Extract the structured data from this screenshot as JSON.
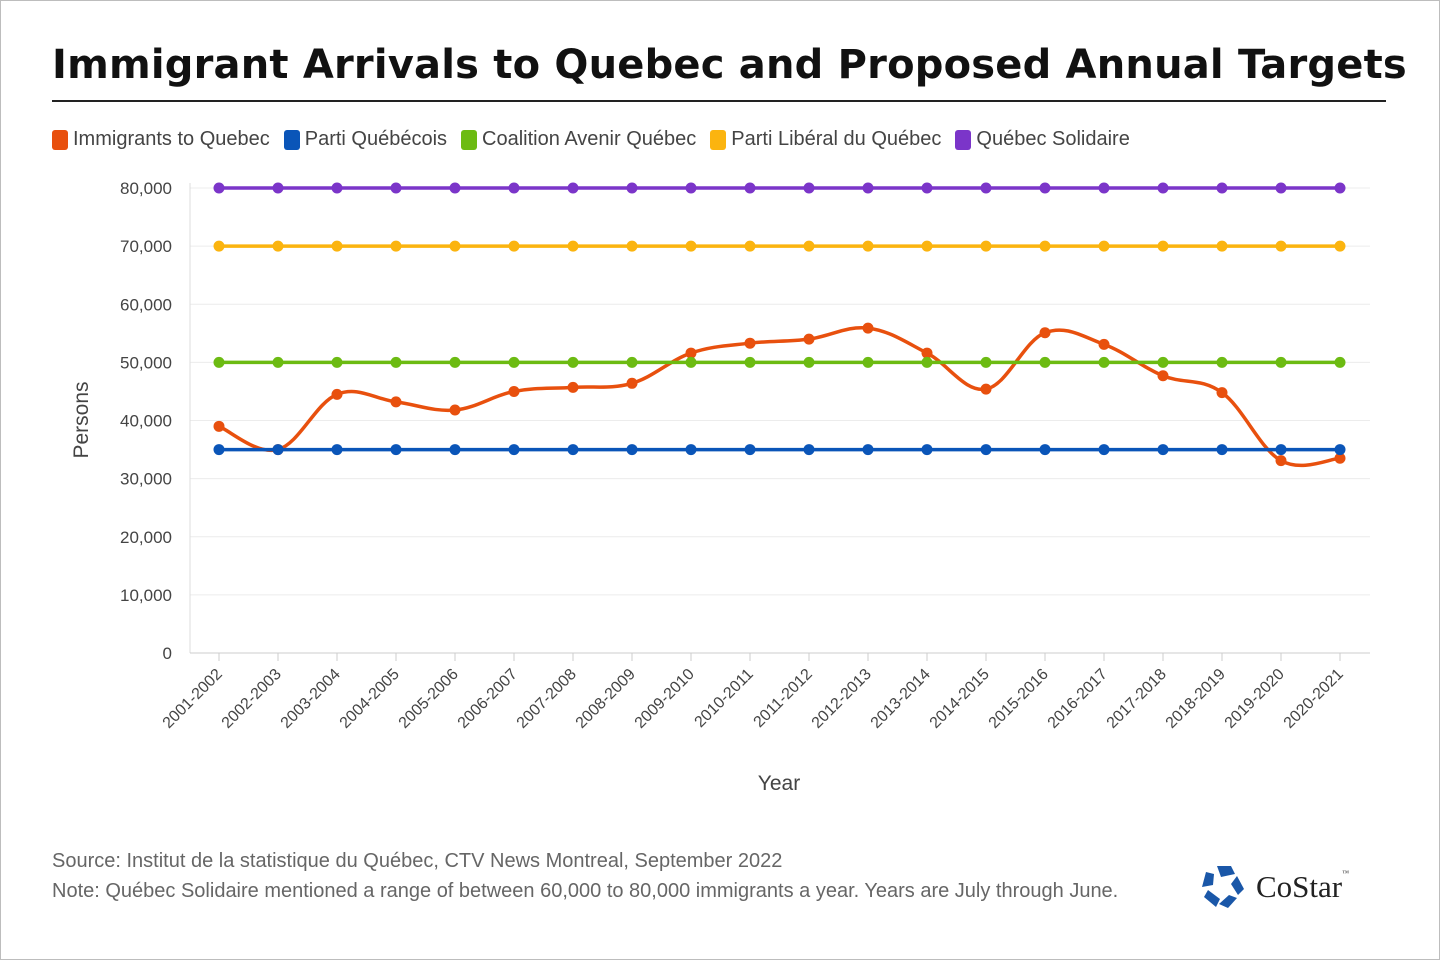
{
  "chart_data": {
    "type": "line",
    "title": "Immigrant Arrivals to Quebec and Proposed Annual Targets",
    "xlabel": "Year",
    "ylabel": "Persons",
    "ylim": [
      0,
      80000
    ],
    "yticks": [
      "0",
      "10,000",
      "20,000",
      "30,000",
      "40,000",
      "50,000",
      "60,000",
      "70,000",
      "80,000"
    ],
    "ytick_values": [
      0,
      10000,
      20000,
      30000,
      40000,
      50000,
      60000,
      70000,
      80000
    ],
    "grid": true,
    "legend_position": "top-left",
    "categories": [
      "2001-2002",
      "2002-2003",
      "2003-2004",
      "2004-2005",
      "2005-2006",
      "2006-2007",
      "2007-2008",
      "2008-2009",
      "2009-2010",
      "2010-2011",
      "2011-2012",
      "2012-2013",
      "2013-2014",
      "2014-2015",
      "2015-2016",
      "2016-2017",
      "2017-2018",
      "2018-2019",
      "2019-2020",
      "2020-2021"
    ],
    "series": [
      {
        "name": "Immigrants to Quebec",
        "color": "#e8500e",
        "smooth": true,
        "values": [
          39000,
          35000,
          44500,
          43200,
          41800,
          45000,
          45700,
          46400,
          51600,
          53300,
          54000,
          55900,
          51600,
          45400,
          55100,
          53100,
          47700,
          44800,
          33100,
          33500
        ]
      },
      {
        "name": "Parti Québécois",
        "color": "#0a55b8",
        "values": [
          35000,
          35000,
          35000,
          35000,
          35000,
          35000,
          35000,
          35000,
          35000,
          35000,
          35000,
          35000,
          35000,
          35000,
          35000,
          35000,
          35000,
          35000,
          35000,
          35000
        ]
      },
      {
        "name": "Coalition Avenir Québec",
        "color": "#6cbb12",
        "values": [
          50000,
          50000,
          50000,
          50000,
          50000,
          50000,
          50000,
          50000,
          50000,
          50000,
          50000,
          50000,
          50000,
          50000,
          50000,
          50000,
          50000,
          50000,
          50000,
          50000
        ]
      },
      {
        "name": "Parti Libéral du Québec",
        "color": "#fbb40f",
        "values": [
          70000,
          70000,
          70000,
          70000,
          70000,
          70000,
          70000,
          70000,
          70000,
          70000,
          70000,
          70000,
          70000,
          70000,
          70000,
          70000,
          70000,
          70000,
          70000,
          70000
        ]
      },
      {
        "name": "Québec Solidaire",
        "color": "#7b35c9",
        "values": [
          80000,
          80000,
          80000,
          80000,
          80000,
          80000,
          80000,
          80000,
          80000,
          80000,
          80000,
          80000,
          80000,
          80000,
          80000,
          80000,
          80000,
          80000,
          80000,
          80000
        ]
      }
    ]
  },
  "footer": {
    "source": "Source: Institut de la statistique du Québec, CTV News Montreal, September 2022",
    "note": "Note: Québec Solidaire mentioned a range of between 60,000 to 80,000 immigrants a year. Years are July through June."
  },
  "logo": {
    "text": "CoStar",
    "tm": "™",
    "color": "#1a57a8"
  }
}
